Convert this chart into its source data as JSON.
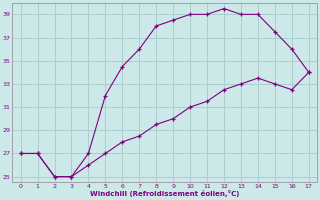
{
  "line1_x": [
    0,
    1,
    2,
    3,
    4,
    5,
    6,
    7,
    8,
    9,
    10,
    11,
    12,
    13,
    14,
    15,
    16,
    17
  ],
  "line1_y": [
    27,
    27,
    25,
    25,
    27,
    32,
    34.5,
    36,
    38,
    38.5,
    39,
    39,
    39.5,
    39,
    39,
    37.5,
    36,
    34
  ],
  "line2_x": [
    0,
    1,
    2,
    3,
    4,
    5,
    6,
    7,
    8,
    9,
    10,
    11,
    12,
    13,
    14,
    15,
    16,
    17
  ],
  "line2_y": [
    27,
    27,
    25,
    25,
    26,
    27,
    28,
    28.5,
    29.5,
    30,
    31,
    31.5,
    32.5,
    33,
    33.5,
    33,
    32.5,
    34
  ],
  "line_color": "#800080",
  "bg_color": "#cce8e8",
  "grid_color": "#aacece",
  "xlabel": "Windchill (Refroidissement éolien,°C)",
  "xlim": [
    -0.5,
    17.5
  ],
  "ylim": [
    24.5,
    40
  ],
  "yticks": [
    25,
    27,
    29,
    31,
    33,
    35,
    37,
    39
  ],
  "xticks": [
    0,
    1,
    2,
    3,
    4,
    5,
    6,
    7,
    8,
    9,
    10,
    11,
    12,
    13,
    14,
    15,
    16,
    17
  ]
}
